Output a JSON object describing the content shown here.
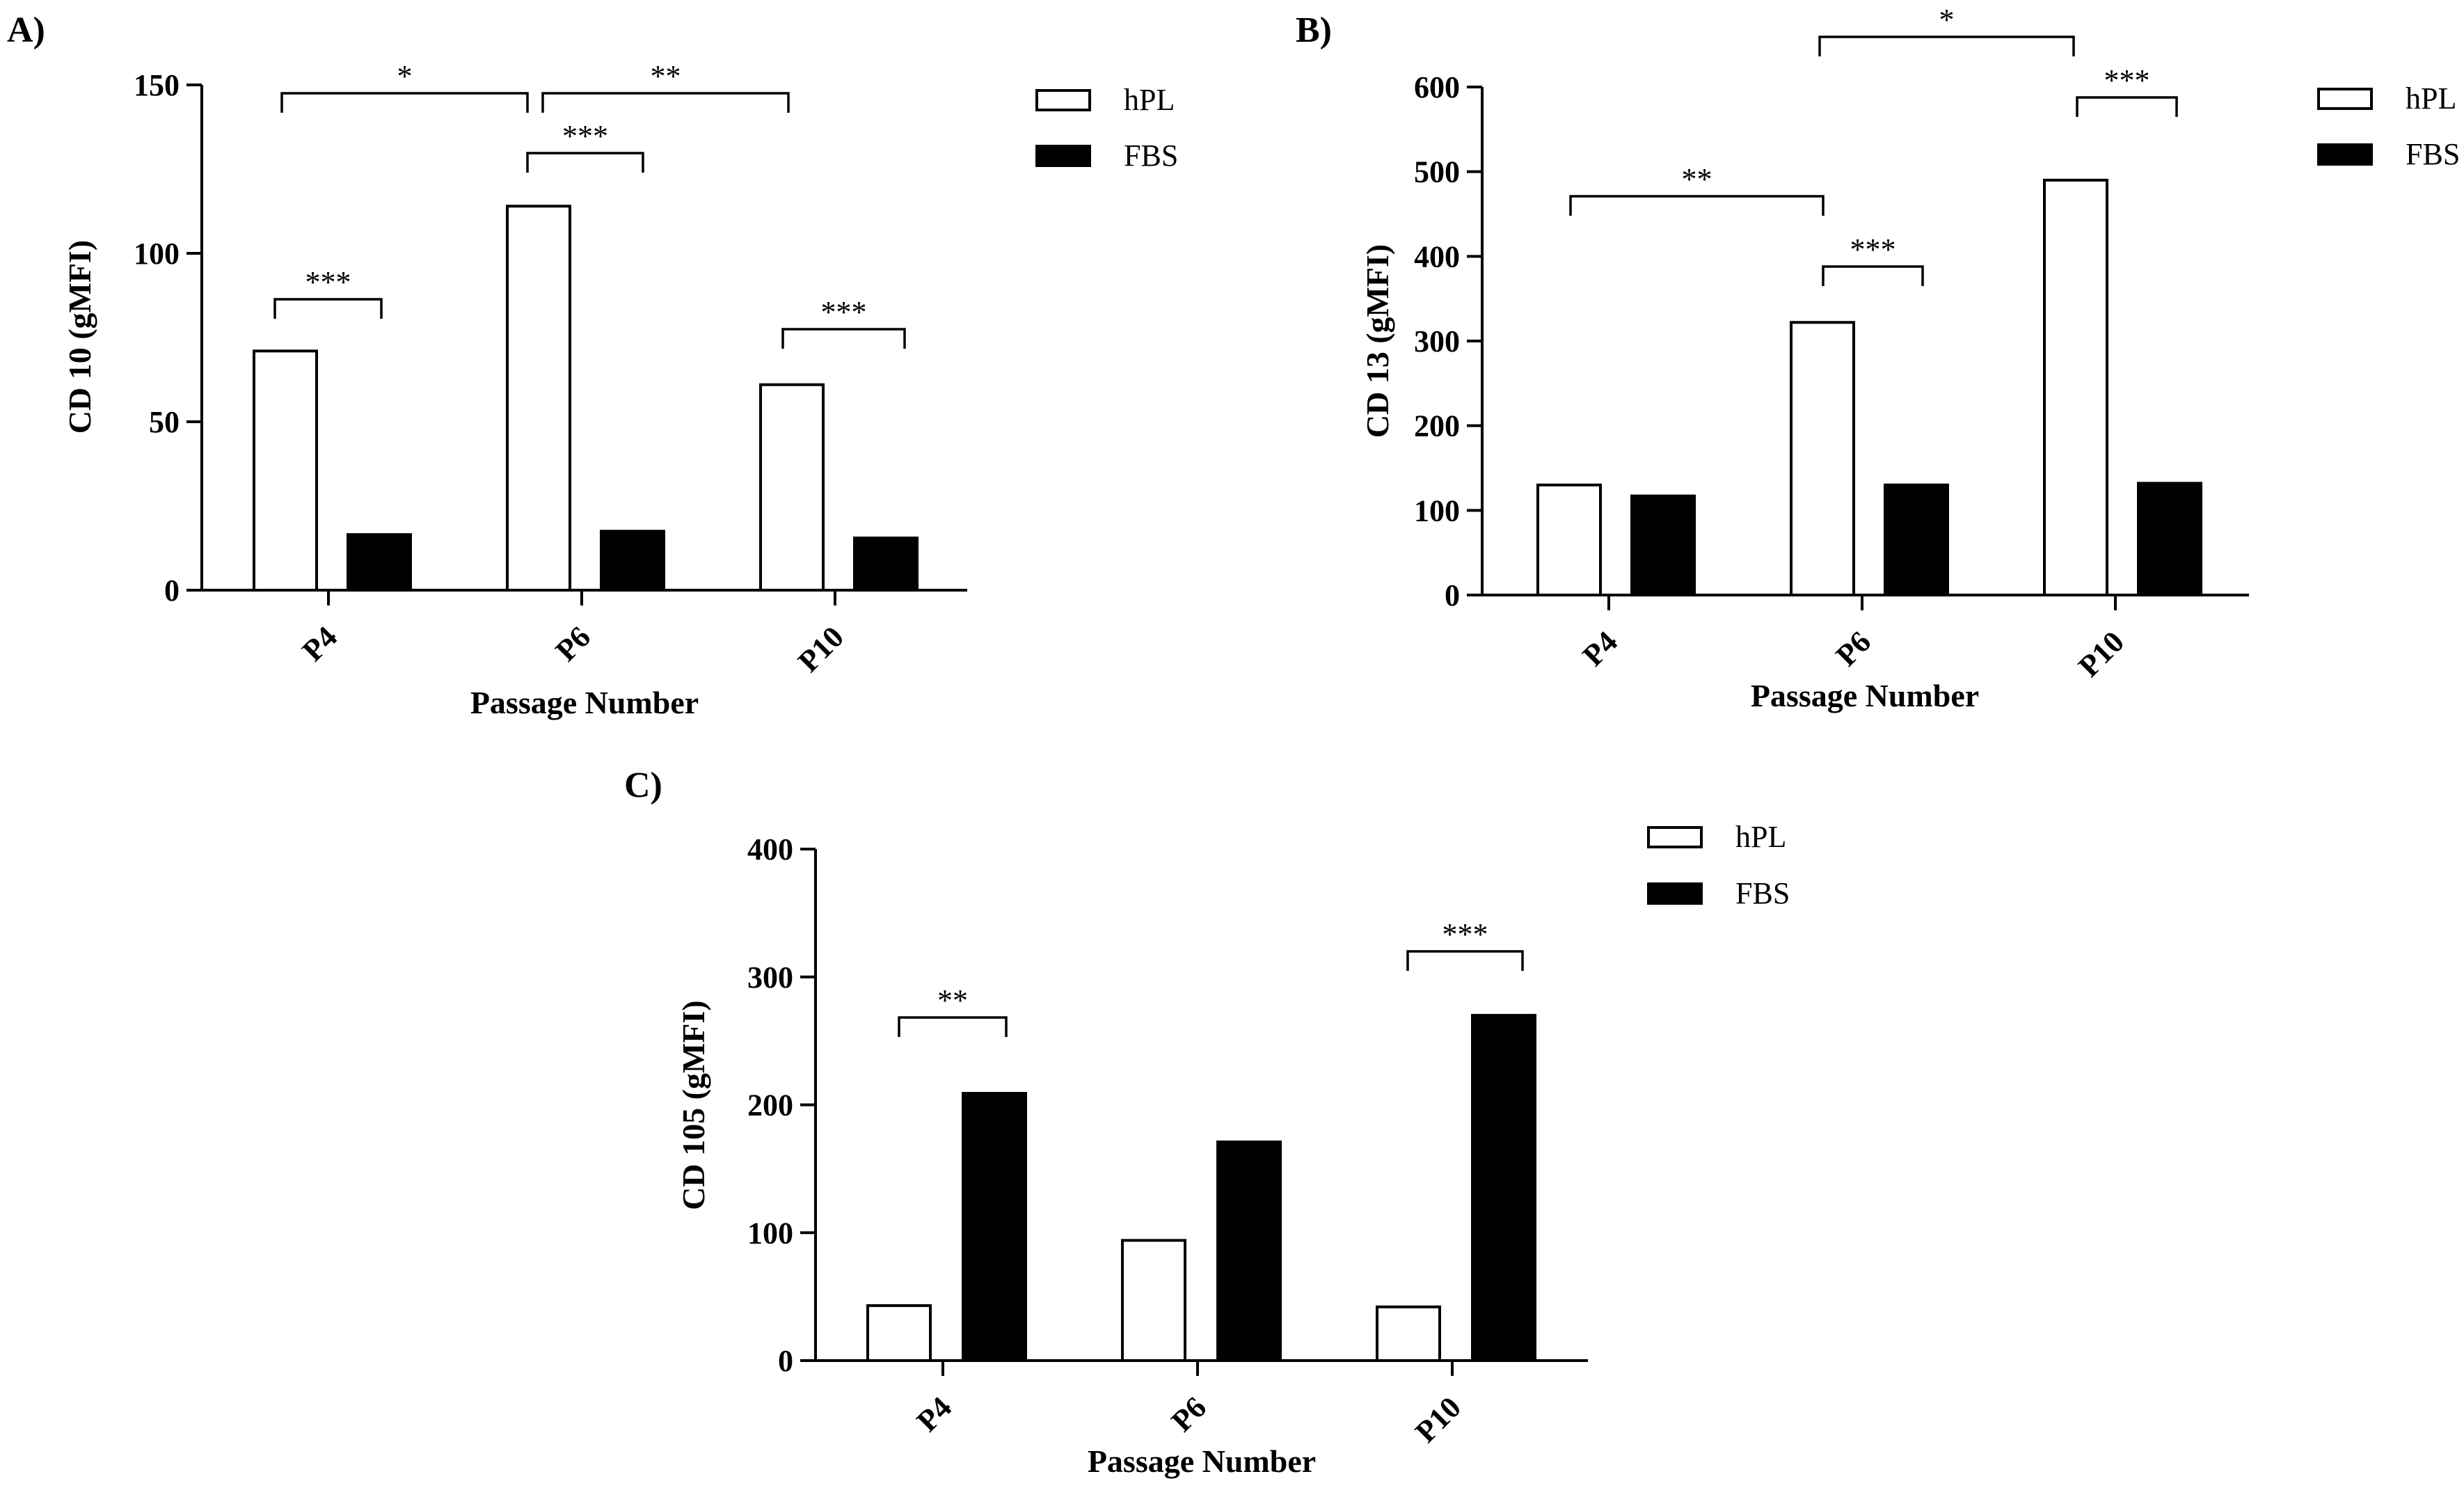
{
  "chart_data": [
    {
      "type": "bar",
      "panel": "A)",
      "categories": [
        "P4",
        "P6",
        "P10"
      ],
      "series": [
        {
          "name": "hPL",
          "values": [
            71,
            114,
            61
          ]
        },
        {
          "name": "FBS",
          "values": [
            16.5,
            17.5,
            15.5
          ]
        }
      ],
      "ylabel": "CD 10 (gMFI)",
      "xlabel": "Passage Number",
      "ylim": [
        0,
        150
      ],
      "yticks": [
        "0",
        "50",
        "100",
        "150"
      ],
      "legend": [
        "hPL",
        "FBS"
      ],
      "legend_position": "top-right",
      "significance": [
        {
          "label": "***",
          "from": "P4 hPL",
          "to": "P4 FBS"
        },
        {
          "label": "***",
          "from": "P6 hPL",
          "to": "P6 FBS"
        },
        {
          "label": "***",
          "from": "P10 hPL",
          "to": "P10 FBS"
        },
        {
          "label": "*",
          "from": "P4 hPL",
          "to": "P6 hPL"
        },
        {
          "label": "**",
          "from": "P6 hPL",
          "to": "P10 hPL"
        }
      ]
    },
    {
      "type": "bar",
      "panel": "B)",
      "categories": [
        "P4",
        "P6",
        "P10"
      ],
      "series": [
        {
          "name": "hPL",
          "values": [
            130,
            322,
            490
          ]
        },
        {
          "name": "FBS",
          "values": [
            117,
            130,
            132
          ]
        }
      ],
      "ylabel": "CD 13 (gMFI)",
      "xlabel": "Passage Number",
      "ylim": [
        0,
        600
      ],
      "yticks": [
        "0",
        "100",
        "200",
        "300",
        "400",
        "500",
        "600"
      ],
      "legend": [
        "hPL",
        "FBS"
      ],
      "legend_position": "top-right",
      "significance": [
        {
          "label": "**",
          "from": "P4 hPL",
          "to": "P6 hPL"
        },
        {
          "label": "***",
          "from": "P6 hPL",
          "to": "P6 FBS"
        },
        {
          "label": "*",
          "from": "P6 hPL",
          "to": "P10 hPL"
        },
        {
          "label": "***",
          "from": "P10 hPL",
          "to": "P10 FBS"
        }
      ]
    },
    {
      "type": "bar",
      "panel": "C)",
      "categories": [
        "P4",
        "P6",
        "P10"
      ],
      "series": [
        {
          "name": "hPL",
          "values": [
            43,
            94,
            42
          ]
        },
        {
          "name": "FBS",
          "values": [
            209,
            171,
            270
          ]
        }
      ],
      "ylabel": "CD 105 (gMFI)",
      "xlabel": "Passage  Number",
      "ylim": [
        0,
        400
      ],
      "yticks": [
        "0",
        "100",
        "200",
        "300",
        "400"
      ],
      "legend": [
        "hPL",
        "FBS"
      ],
      "legend_position": "top-right",
      "significance": [
        {
          "label": "**",
          "from": "P4 hPL",
          "to": "P4 FBS"
        },
        {
          "label": "***",
          "from": "P10 hPL",
          "to": "P10 FBS"
        }
      ]
    }
  ]
}
